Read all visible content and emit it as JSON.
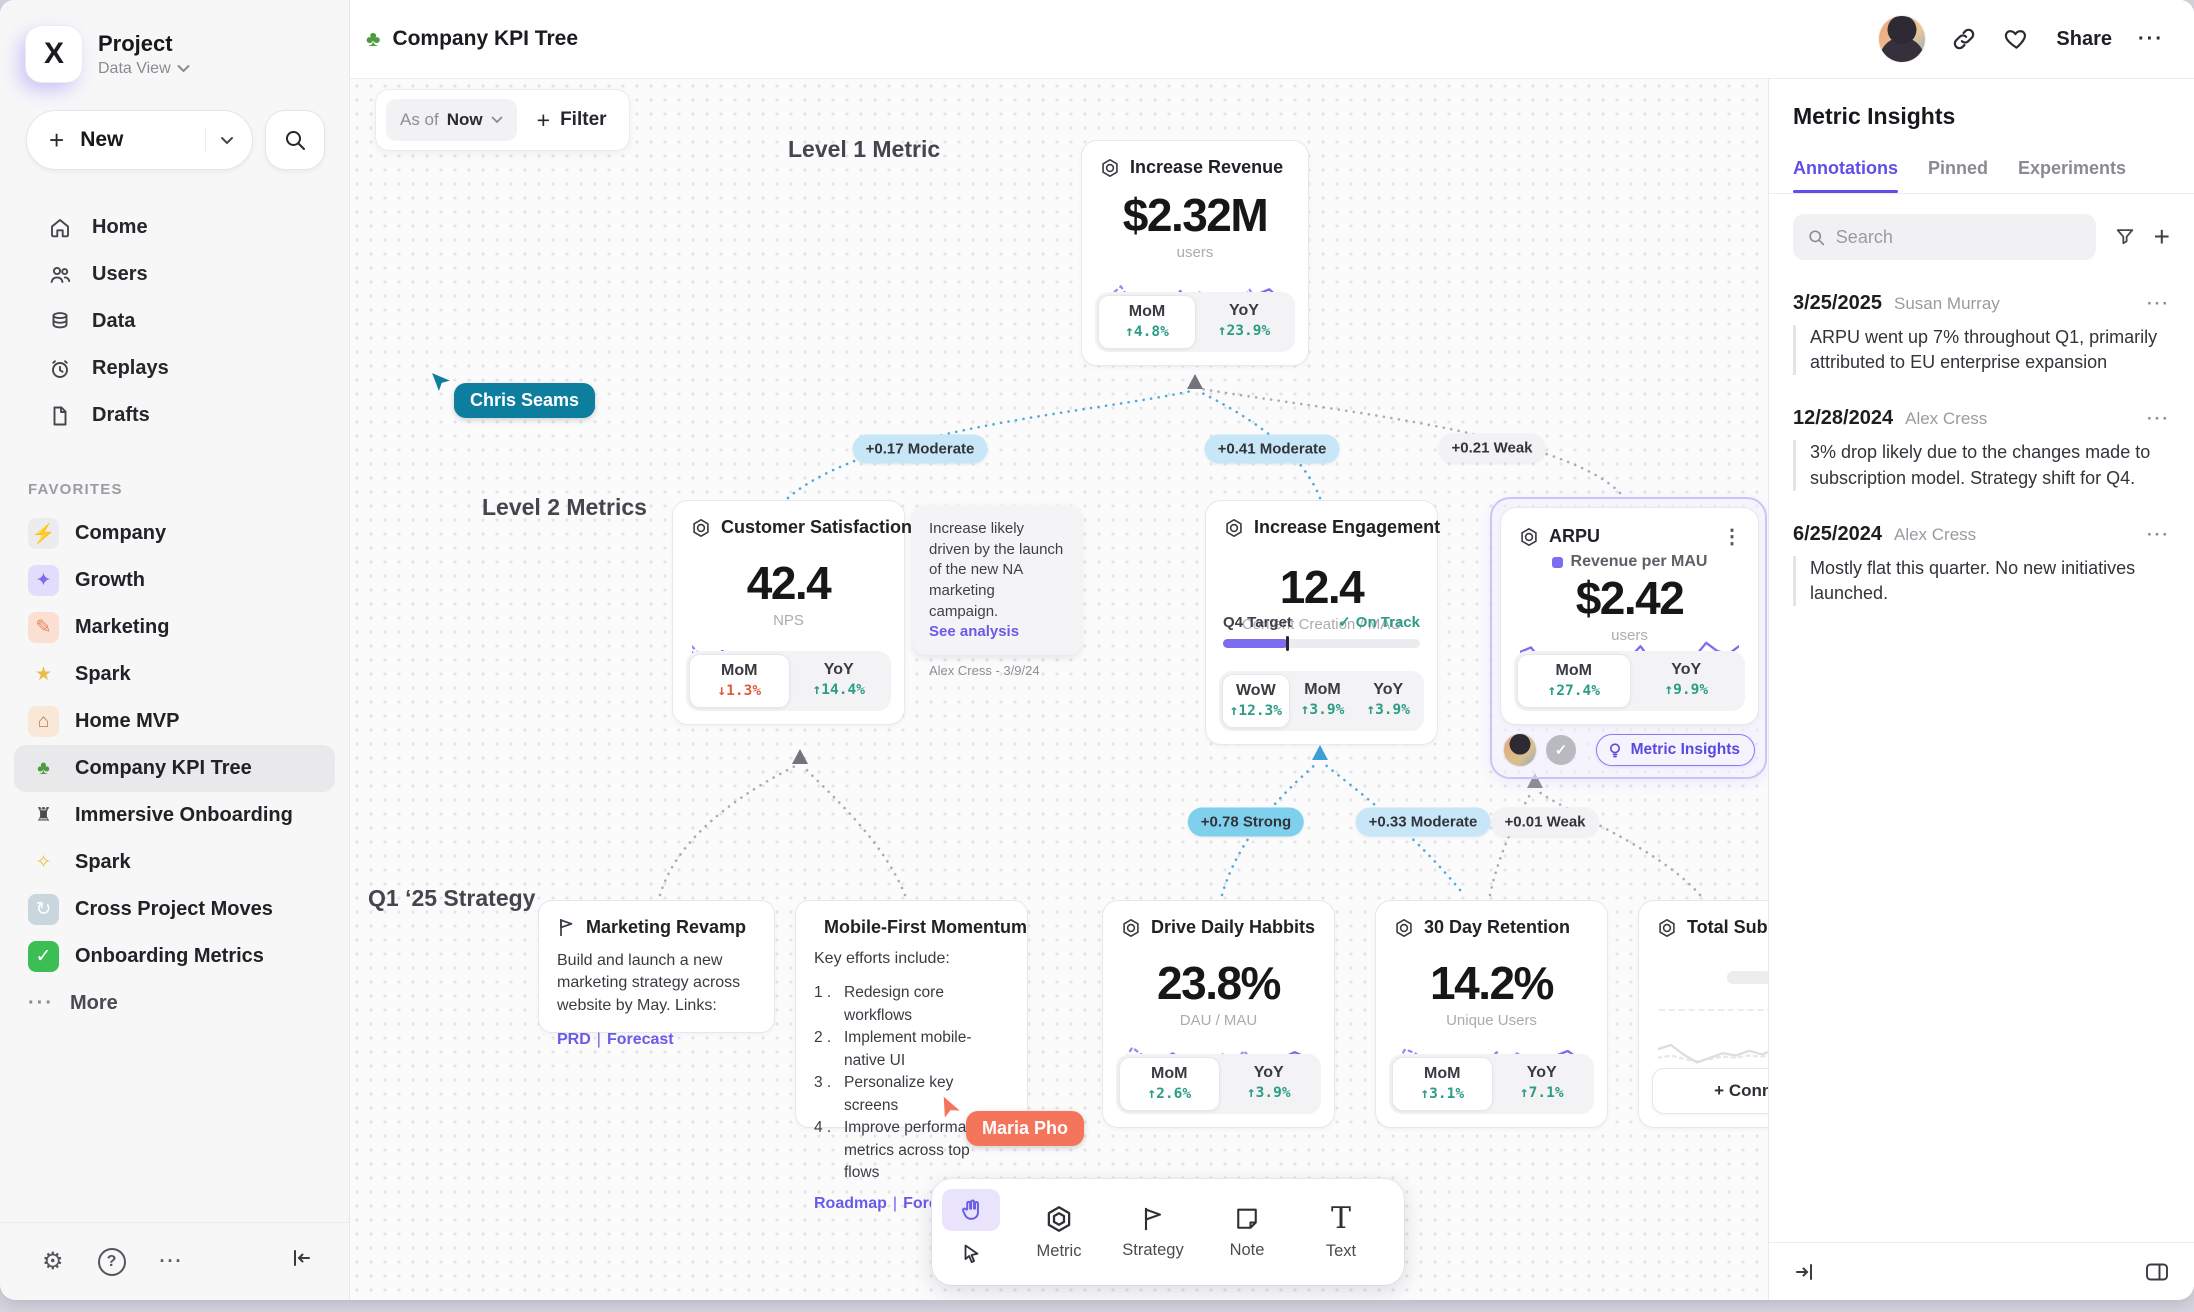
{
  "glyphs": {
    "plus": "+",
    "check": "✓",
    "dots": "···",
    "kebab": "⋮",
    "gear": "⚙",
    "help": "?",
    "pipe": "|"
  },
  "sidebar": {
    "project_name": "Project",
    "project_view": "Data View",
    "new_label": "New",
    "nav": [
      {
        "label": "Home"
      },
      {
        "label": "Users"
      },
      {
        "label": "Data"
      },
      {
        "label": "Replays"
      },
      {
        "label": "Drafts"
      }
    ],
    "favorites_header": "FAVORITES",
    "favorites": [
      {
        "label": "Company",
        "glyph": "⚡",
        "tile": "#ECECEF",
        "fg": "#55555C"
      },
      {
        "label": "Growth",
        "glyph": "✦",
        "tile": "#E2DDFB",
        "fg": "#7B6CF0"
      },
      {
        "label": "Marketing",
        "glyph": "✎",
        "tile": "#FBDFD2",
        "fg": "#E5845F"
      },
      {
        "label": "Spark",
        "glyph": "★",
        "tile": "transparent",
        "fg": "#E8BE4B"
      },
      {
        "label": "Home MVP",
        "glyph": "⌂",
        "tile": "#F9E8D8",
        "fg": "#B97B4A"
      },
      {
        "label": "Company KPI Tree",
        "glyph": "♣",
        "tile": "transparent",
        "fg": "#4E9B42"
      },
      {
        "label": "Immersive Onboarding",
        "glyph": "♜",
        "tile": "transparent",
        "fg": "#4A4A50"
      },
      {
        "label": "Spark",
        "glyph": "✧",
        "tile": "transparent",
        "fg": "#E8BE4B"
      },
      {
        "label": "Cross Project Moves",
        "glyph": "↻",
        "tile": "#C9D6DE",
        "fg": "#FFFFFF"
      },
      {
        "label": "Onboarding Metrics",
        "glyph": "✓",
        "tile": "#3BBE54",
        "fg": "#FFFFFF"
      }
    ],
    "more_label": "More"
  },
  "topbar": {
    "doc_title": "Company KPI Tree",
    "share_label": "Share"
  },
  "canvas": {
    "asof_label": "As of",
    "asof_value": "Now",
    "filter_label": "Filter",
    "level1_label": "Level 1 Metric",
    "level2_label": "Level 2 Metrics",
    "strategy_label": "Q1 ‘25 Strategy",
    "edge_labels": [
      {
        "text": "+0.17 Moderate",
        "variant": "moderate"
      },
      {
        "text": "+0.41 Moderate",
        "variant": "moderate"
      },
      {
        "text": "+0.21 Weak",
        "variant": "weak"
      },
      {
        "text": "+0.78 Strong",
        "variant": "strong"
      },
      {
        "text": "+0.33 Moderate",
        "variant": "moderate"
      },
      {
        "text": "+0.01 Weak",
        "variant": "weak"
      }
    ],
    "cursors": [
      {
        "name": "Chris Seams",
        "color": "#0E7E9E"
      },
      {
        "name": "Maria Pho",
        "color": "#F4755B"
      }
    ]
  },
  "metrics": {
    "revenue": {
      "title": "Increase Revenue",
      "value": "$2.32M",
      "unit": "users",
      "stats": [
        {
          "label": "MoM",
          "delta": "↑4.8%",
          "dir": "up"
        },
        {
          "label": "YoY",
          "delta": "↑23.9%",
          "dir": "up"
        }
      ],
      "sparkline": {
        "solid": [
          45,
          40,
          28,
          30,
          55,
          38,
          45,
          30,
          62,
          35,
          48,
          40,
          52,
          45,
          35,
          30,
          58,
          65,
          50,
          42
        ],
        "dotted": [
          30,
          55,
          70,
          45,
          35,
          42,
          50,
          38,
          30,
          48,
          60,
          42,
          35,
          55,
          40,
          65,
          35,
          28,
          45,
          40
        ],
        "color": "#7B6CF0",
        "color2": "#958BF3"
      }
    },
    "satisfaction": {
      "title": "Customer Satisfaction",
      "value": "42.4",
      "unit": "NPS",
      "stats": [
        {
          "label": "MoM",
          "delta": "↓1.3%",
          "dir": "down"
        },
        {
          "label": "YoY",
          "delta": "↑14.4%",
          "dir": "up"
        }
      ],
      "sparkline": {
        "solid": [
          60,
          45,
          52,
          62,
          45,
          18,
          35,
          45,
          52,
          30,
          60,
          42,
          50,
          55,
          40,
          30,
          20,
          35,
          50,
          46
        ],
        "dotted": [
          70,
          52,
          56,
          48,
          46,
          42,
          44,
          45,
          47,
          44,
          50,
          46,
          48,
          47,
          45,
          42,
          44,
          46,
          52,
          48
        ],
        "color": "#7B6CF0",
        "color2": "#958BF3"
      }
    },
    "engagement": {
      "title": "Increase Engagement",
      "value": "12.4",
      "unit": "Content Creation / MAU",
      "target_label": "Q4 Target",
      "status": "On Track",
      "progress": "33%",
      "stats": [
        {
          "label": "WoW",
          "delta": "↑12.3%",
          "dir": "up"
        },
        {
          "label": "MoM",
          "delta": "↑3.9%",
          "dir": "up"
        },
        {
          "label": "YoY",
          "delta": "↑3.9%",
          "dir": "up"
        }
      ]
    },
    "arpu": {
      "title": "ARPU",
      "legend": "Revenue per MAU",
      "value": "$2.42",
      "unit": "users",
      "stats": [
        {
          "label": "MoM",
          "delta": "↑27.4%",
          "dir": "up"
        },
        {
          "label": "YoY",
          "delta": "↑9.9%",
          "dir": "up"
        }
      ],
      "sparkline": {
        "solid": [
          62,
          70,
          45,
          30,
          42,
          48,
          56,
          62,
          50,
          58,
          52,
          72,
          46,
          54,
          48,
          38,
          55,
          78,
          64,
          58,
          72
        ],
        "dotted": [
          35,
          33,
          30,
          25,
          35,
          38,
          33,
          40,
          36,
          42,
          38,
          35,
          30,
          36,
          40,
          42,
          44,
          46,
          38,
          30,
          46
        ],
        "color": "#7B6CF0",
        "color2": "#958BF3"
      },
      "insights_button": "Metric Insights"
    },
    "habits": {
      "title": "Drive Daily Habbits",
      "value": "23.8%",
      "unit": "DAU / MAU",
      "stats": [
        {
          "label": "MoM",
          "delta": "↑2.6%",
          "dir": "up"
        },
        {
          "label": "YoY",
          "delta": "↑3.9%",
          "dir": "up"
        }
      ],
      "sparkline": {
        "solid": [
          45,
          42,
          35,
          20,
          48,
          58,
          45,
          40,
          28,
          52,
          38,
          48,
          42,
          50,
          40,
          35,
          52,
          60,
          52,
          40
        ],
        "dotted": [
          40,
          68,
          55,
          45,
          38,
          42,
          33,
          48,
          28,
          42,
          58,
          40,
          62,
          42,
          35,
          28,
          45,
          38,
          42,
          40
        ],
        "color": "#7B6CF0",
        "color2": "#958BF3"
      }
    },
    "retention": {
      "title": "30 Day Retention",
      "value": "14.2%",
      "unit": "Unique Users",
      "stats": [
        {
          "label": "MoM",
          "delta": "↑3.1%",
          "dir": "up"
        },
        {
          "label": "YoY",
          "delta": "↑7.1%",
          "dir": "up"
        }
      ],
      "sparkline": {
        "solid": [
          42,
          45,
          32,
          22,
          50,
          55,
          42,
          45,
          30,
          55,
          40,
          45,
          40,
          52,
          42,
          32,
          55,
          62,
          50,
          42
        ],
        "dotted": [
          38,
          65,
          58,
          42,
          35,
          45,
          30,
          50,
          30,
          40,
          60,
          42,
          58,
          45,
          32,
          30,
          48,
          35,
          45,
          42
        ],
        "color": "#7B6CF0",
        "color2": "#958BF3"
      }
    },
    "subscriptions": {
      "title": "Total Subscriptions",
      "connect_label": "+ Connect",
      "sparkline": {
        "solid": [
          55,
          62,
          45,
          32,
          40,
          48,
          44,
          52,
          46,
          54,
          48,
          44,
          52,
          40,
          36,
          46
        ],
        "dotted": [
          40,
          44,
          38,
          34,
          38,
          42,
          40,
          44,
          42,
          46,
          42,
          40,
          44,
          38,
          34,
          40
        ],
        "color": "#DCDCE2",
        "color2": "#E6E6EB"
      }
    }
  },
  "notes": {
    "analysis": {
      "text": "Increase likely driven by the launch of the new NA marketing campaign.",
      "link": "See analysis",
      "author": "Alex Cress - 3/9/24"
    },
    "marketing": {
      "title": "Marketing Revamp",
      "body": "Build and launch a new marketing strategy across website by May. Links:",
      "link1": "PRD",
      "link2": "Forecast"
    },
    "mobile": {
      "title": "Mobile-First Momentum",
      "intro": "Key efforts include:",
      "items": [
        "Redesign core workflows",
        "Implement mobile-native UI",
        "Personalize key screens",
        "Improve performance metrics across top flows"
      ],
      "link1": "Roadmap",
      "link2": "Forecast"
    }
  },
  "insights_panel": {
    "title": "Metric Insights",
    "tabs": [
      {
        "label": "Annotations"
      },
      {
        "label": "Pinned"
      },
      {
        "label": "Experiments"
      }
    ],
    "search_placeholder": "Search",
    "annotations": [
      {
        "date": "3/25/2025",
        "author": "Susan Murray",
        "text": "ARPU went up 7% throughout Q1, primarily attributed to EU enterprise expansion"
      },
      {
        "date": "12/28/2024",
        "author": "Alex Cress",
        "text": "3% drop likely due to the changes made to subscription model. Strategy shift for Q4."
      },
      {
        "date": "6/25/2024",
        "author": "Alex Cress",
        "text": "Mostly flat this quarter. No new initiatives launched."
      }
    ]
  },
  "toolbar": {
    "tools": [
      {
        "label": "Metric"
      },
      {
        "label": "Strategy"
      },
      {
        "label": "Note"
      },
      {
        "label": "Text"
      }
    ]
  }
}
